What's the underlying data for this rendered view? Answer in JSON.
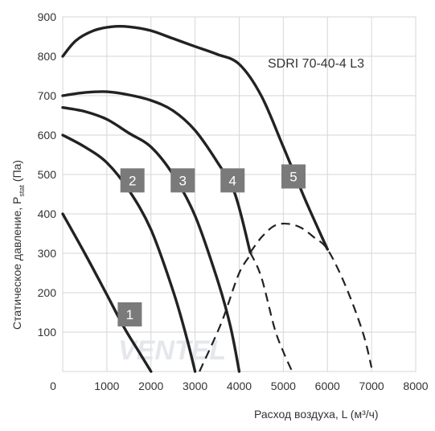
{
  "chart_data": {
    "type": "line",
    "title": "SDRI 70-40-4 L3",
    "ylabel": "Статическое давление, P",
    "ylabel_sub": "stat",
    "ylabel_unit": "(Па)",
    "xlabel": "Расход воздуха, L (м³/ч)",
    "xlim": [
      0,
      8000
    ],
    "ylim": [
      0,
      900
    ],
    "x_ticks": [
      0,
      1000,
      2000,
      3000,
      4000,
      5000,
      6000,
      7000,
      8000
    ],
    "y_ticks": [
      100,
      200,
      300,
      400,
      500,
      600,
      700,
      800,
      900
    ],
    "grid": true,
    "watermark": "VENTEL",
    "series": [
      {
        "name": "1",
        "label_x": 1520,
        "label_y": 145,
        "x": [
          0,
          500,
          1000,
          1400,
          1700,
          2000
        ],
        "y": [
          400,
          300,
          195,
          110,
          55,
          0
        ]
      },
      {
        "name": "2",
        "label_x": 1580,
        "label_y": 485,
        "x": [
          0,
          500,
          1000,
          1500,
          2000,
          2500,
          2800,
          3000
        ],
        "y": [
          600,
          570,
          530,
          460,
          360,
          205,
          90,
          0
        ]
      },
      {
        "name": "3",
        "label_x": 2720,
        "label_y": 485,
        "x": [
          0,
          500,
          1000,
          1500,
          2000,
          2500,
          3000,
          3500,
          3800,
          4000
        ],
        "y": [
          670,
          660,
          640,
          605,
          570,
          500,
          395,
          235,
          115,
          0
        ]
      },
      {
        "name": "4",
        "label_x": 3850,
        "label_y": 485,
        "x": [
          0,
          500,
          1000,
          1500,
          2000,
          2500,
          3000,
          3500,
          3900,
          4250
        ],
        "y": [
          700,
          708,
          710,
          702,
          688,
          662,
          612,
          532,
          452,
          302
        ]
      },
      {
        "name": "5",
        "label_x": 5230,
        "label_y": 495,
        "x": [
          0,
          300,
          700,
          1100,
          1500,
          2000,
          2500,
          3000,
          3500,
          4000,
          4500,
          5000,
          5500,
          6000
        ],
        "y": [
          800,
          840,
          865,
          875,
          875,
          865,
          845,
          825,
          805,
          780,
          700,
          570,
          435,
          310
        ]
      },
      {
        "name": "system-a",
        "dashed": true,
        "x": [
          3100,
          3600,
          4000,
          4300
        ],
        "y": [
          0,
          125,
          250,
          302
        ]
      },
      {
        "name": "system-b",
        "dashed": true,
        "x": [
          4250,
          4500,
          4800,
          5100,
          5400,
          5700,
          6000,
          6400,
          6800,
          7000
        ],
        "y": [
          302,
          340,
          370,
          375,
          365,
          340,
          310,
          220,
          100,
          10
        ]
      },
      {
        "name": "system-c",
        "dashed": true,
        "x": [
          4250,
          4500,
          4800,
          5000,
          5200
        ],
        "y": [
          302,
          240,
          110,
          50,
          0
        ]
      }
    ]
  }
}
